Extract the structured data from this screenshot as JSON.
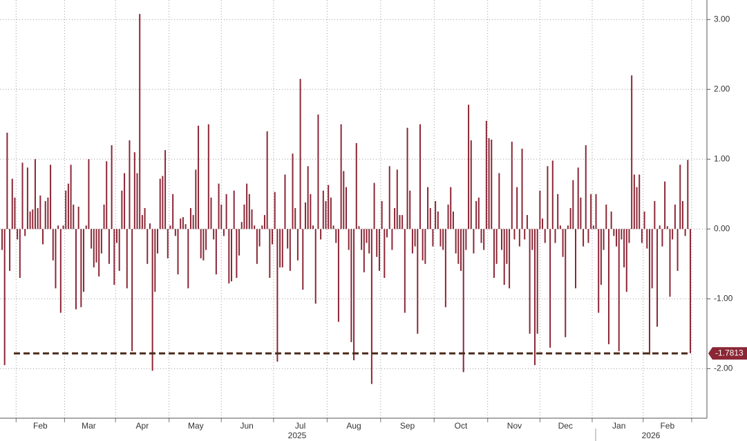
{
  "chart_data": {
    "type": "bar",
    "categories": [
      null,
      null,
      null,
      null,
      null,
      null,
      null,
      null,
      null,
      null,
      null,
      null,
      null,
      null,
      null,
      "Feb",
      null,
      null,
      null,
      null,
      null,
      null,
      null,
      null,
      null,
      null,
      null,
      null,
      null,
      null,
      null,
      null,
      null,
      null,
      "Mar",
      null,
      null,
      null,
      null,
      null,
      null,
      null,
      null,
      null,
      null,
      null,
      null,
      null,
      null,
      null,
      null,
      null,
      null,
      null,
      null,
      "Apr",
      null,
      null,
      null,
      null,
      null,
      null,
      null,
      null,
      null,
      null,
      null,
      null,
      null,
      null,
      null,
      null,
      null,
      null,
      null,
      null,
      "May",
      null,
      null,
      null,
      null,
      null,
      null,
      null,
      null,
      null,
      null,
      null,
      null,
      null,
      null,
      null,
      null,
      null,
      null,
      null,
      "Jun",
      null,
      null,
      null,
      null,
      null,
      null,
      null,
      null,
      null,
      null,
      null,
      null,
      null,
      null,
      null,
      null,
      null,
      null,
      null,
      null,
      "Jul",
      null,
      null,
      null,
      null,
      null,
      null,
      null,
      null,
      null,
      null,
      null,
      null,
      null,
      null,
      null,
      null,
      null,
      null,
      null,
      null,
      "Aug",
      null,
      null,
      null,
      null,
      null,
      null,
      null,
      null,
      null,
      null,
      null,
      null,
      null,
      null,
      null,
      null,
      null,
      null,
      null,
      null,
      "Sep",
      null,
      null,
      null,
      null,
      null,
      null,
      null,
      null,
      null,
      null,
      null,
      null,
      null,
      null,
      null,
      null,
      null,
      null,
      null,
      null,
      "Oct",
      null,
      null,
      null,
      null,
      null,
      null,
      null,
      null,
      null,
      null,
      null,
      null,
      null,
      null,
      null,
      null,
      null,
      null,
      null,
      null,
      "Nov",
      null,
      null,
      null,
      null,
      null,
      null,
      null,
      null,
      null,
      null,
      null,
      null,
      null,
      null,
      null,
      null,
      null,
      null,
      null,
      "Dec",
      null,
      null,
      null,
      null,
      null,
      null,
      null,
      null,
      null,
      null,
      null,
      null,
      null,
      null,
      null,
      null,
      null,
      null,
      null,
      null,
      "Jan",
      null,
      null,
      null,
      null,
      null,
      null,
      null,
      null,
      null,
      null,
      null,
      null,
      null,
      null,
      null,
      null,
      null,
      null,
      "Feb",
      null,
      null,
      null,
      null,
      null,
      null,
      null,
      null,
      null
    ],
    "values": [
      -0.3,
      -1.95,
      1.38,
      -0.6,
      0.72,
      0.45,
      -0.15,
      -0.7,
      0.95,
      -0.1,
      0.88,
      0.25,
      0.28,
      1.0,
      0.3,
      0.48,
      -0.22,
      0.4,
      0.45,
      0.92,
      -0.45,
      -0.85,
      0.05,
      -1.2,
      0.05,
      0.55,
      0.65,
      0.92,
      0.35,
      -1.15,
      0.32,
      -1.12,
      -0.9,
      0.05,
      1.0,
      -0.28,
      -0.55,
      -0.48,
      -0.68,
      -0.35,
      0.35,
      0.97,
      -0.5,
      1.2,
      -0.8,
      -0.2,
      -0.6,
      0.55,
      0.8,
      -0.85,
      1.27,
      -1.75,
      1.1,
      0.8,
      3.08,
      0.2,
      0.3,
      -0.5,
      0.08,
      -2.03,
      -0.9,
      -0.35,
      0.72,
      0.76,
      1.13,
      -0.42,
      0.05,
      0.5,
      -0.1,
      -0.65,
      0.15,
      0.17,
      0.07,
      -0.85,
      0.3,
      0.2,
      0.85,
      1.48,
      -0.42,
      -0.45,
      -0.3,
      1.5,
      0.45,
      -0.15,
      -0.65,
      0.65,
      0.35,
      -0.1,
      0.5,
      -0.78,
      -0.75,
      0.55,
      -0.7,
      -0.38,
      0.1,
      0.35,
      0.65,
      0.5,
      0.28,
      0.05,
      -0.5,
      -0.25,
      0.05,
      0.2,
      1.4,
      -0.7,
      -0.22,
      0.53,
      -1.9,
      -0.55,
      -0.55,
      0.78,
      -0.28,
      -0.6,
      1.08,
      0.3,
      -0.45,
      2.15,
      -0.87,
      0.38,
      0.9,
      0.5,
      0.05,
      -1.07,
      1.64,
      -0.15,
      0.55,
      0.4,
      0.63,
      0.45,
      0.05,
      -0.2,
      -1.33,
      1.5,
      0.83,
      0.6,
      -0.3,
      -1.62,
      -1.88,
      1.23,
      0.04,
      -0.3,
      -0.62,
      -0.2,
      -0.35,
      -2.22,
      0.66,
      -0.4,
      -0.6,
      0.4,
      -0.7,
      -0.12,
      0.9,
      -0.3,
      0.3,
      0.85,
      0.2,
      0.2,
      -1.2,
      1.45,
      0.55,
      -0.35,
      -0.25,
      -1.5,
      1.5,
      -0.45,
      -0.5,
      0.6,
      0.3,
      -0.25,
      0.4,
      0.25,
      -0.25,
      -0.3,
      -1.12,
      0.35,
      0.6,
      0.25,
      -0.35,
      -0.5,
      -0.6,
      -2.05,
      -0.3,
      1.78,
      1.27,
      -0.35,
      0.4,
      0.45,
      -0.2,
      -0.3,
      1.55,
      1.3,
      1.28,
      -0.7,
      -0.5,
      0.8,
      -0.3,
      -0.8,
      -0.5,
      -0.85,
      1.25,
      -0.15,
      0.6,
      -0.25,
      1.15,
      -0.15,
      0.2,
      -1.5,
      -0.3,
      -1.95,
      -1.5,
      0.55,
      0.15,
      -0.2,
      0.9,
      -1.7,
      0.98,
      -0.2,
      0.5,
      0.05,
      -0.4,
      -1.55,
      0.05,
      0.3,
      0.7,
      -0.85,
      0.88,
      0.45,
      -0.25,
      1.2,
      -0.2,
      0.5,
      0.05,
      0.5,
      -1.2,
      -0.8,
      -0.3,
      0.35,
      -1.65,
      0.25,
      -0.1,
      -0.25,
      -1.75,
      -0.15,
      -0.55,
      -0.9,
      -0.2,
      2.2,
      0.78,
      0.6,
      0.78,
      -0.2,
      0.25,
      -0.28,
      -1.8,
      -0.85,
      0.4,
      -1.4,
      0.05,
      -0.25,
      0.68,
      0.04,
      -0.97,
      -0.15,
      0.35,
      -0.6,
      0.92,
      0.4,
      -0.1,
      0.99,
      -1.78
    ],
    "color": "#8b2635",
    "ylim": [
      -2.71,
      3.28
    ],
    "yticks": [
      {
        "value": 3,
        "label": "3.00"
      },
      {
        "value": 2,
        "label": "2.00"
      },
      {
        "value": 1,
        "label": "1.00"
      },
      {
        "value": 0,
        "label": "0.00"
      },
      {
        "value": -1,
        "label": "-1.00"
      },
      {
        "value": -2,
        "label": "-2.00"
      }
    ],
    "grid": true,
    "reference_line": {
      "value": -1.7813,
      "label": "-1.7813",
      "color": "#4a2a1a"
    },
    "years": [
      "2025",
      "2026"
    ]
  }
}
